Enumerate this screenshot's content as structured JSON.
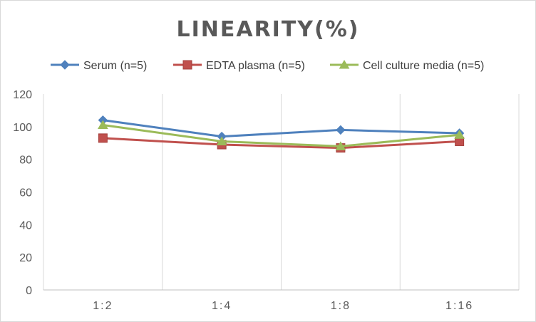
{
  "chart_data": {
    "type": "line",
    "title": "LINEARITY(%)",
    "categories": [
      "1:2",
      "1:4",
      "1:8",
      "1:16"
    ],
    "series": [
      {
        "name": "Serum (n=5)",
        "values": [
          104,
          94,
          98,
          96
        ],
        "color": "#4f81bd",
        "marker": "diamond"
      },
      {
        "name": "EDTA plasma (n=5)",
        "values": [
          93,
          89,
          87,
          91
        ],
        "color": "#c0504d",
        "marker": "square"
      },
      {
        "name": "Cell culture media (n=5)",
        "values": [
          101,
          91,
          88,
          95
        ],
        "color": "#9bbb59",
        "marker": "triangle"
      }
    ],
    "ylim": [
      0,
      120
    ],
    "yticks": [
      0,
      20,
      40,
      60,
      80,
      100,
      120
    ],
    "grid": "vertical",
    "legend": "top"
  }
}
